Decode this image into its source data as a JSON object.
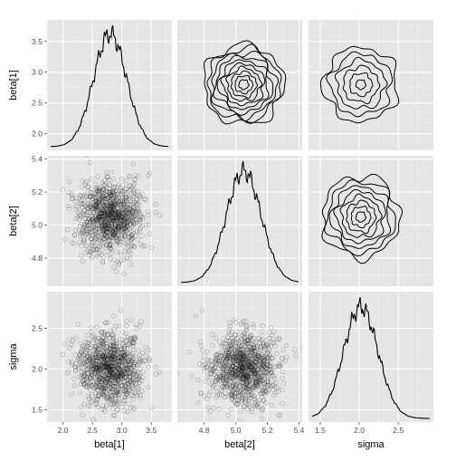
{
  "chart_data": {
    "type": "scatter-matrix",
    "variables": [
      "beta[1]",
      "beta[2]",
      "sigma"
    ],
    "axes": {
      "beta[1]": {
        "range": [
          1.73,
          3.85
        ],
        "ticks": [
          2.0,
          2.5,
          3.0,
          3.5
        ],
        "tick_labels": [
          "2.0",
          "2.5",
          "3.0",
          "3.5"
        ],
        "y_ticks": [
          2.0,
          2.5,
          3.0,
          3.5
        ],
        "y_tick_labels": [
          "2.0",
          "2.5",
          "3.0",
          "3.5"
        ]
      },
      "beta[2]": {
        "range": [
          4.63,
          5.42
        ],
        "ticks": [
          4.8,
          5.0,
          5.2,
          5.4
        ],
        "tick_labels": [
          "4.8",
          "5.0",
          "5.2",
          "5.4"
        ],
        "y_ticks": [
          4.8,
          5.0,
          5.2,
          5.4
        ],
        "y_tick_labels": [
          "4.8",
          "5.0",
          "5.2",
          "5.4"
        ]
      },
      "sigma": {
        "range": [
          1.35,
          2.95
        ],
        "ticks": [
          1.5,
          2.0,
          2.5
        ],
        "tick_labels": [
          "1.5",
          "2.0",
          "2.5"
        ],
        "y_ticks": [
          1.5,
          2.0,
          2.5
        ],
        "y_tick_labels": [
          "1.5",
          "2.0",
          "2.5"
        ]
      }
    },
    "distributions": {
      "beta[1]": {
        "mean": 2.8,
        "sd": 0.28
      },
      "beta[2]": {
        "mean": 5.05,
        "sd": 0.11
      },
      "sigma": {
        "mean": 2.02,
        "sd": 0.22
      }
    },
    "scatter_points_per_panel": 1100,
    "grid": true,
    "legend": "none"
  }
}
